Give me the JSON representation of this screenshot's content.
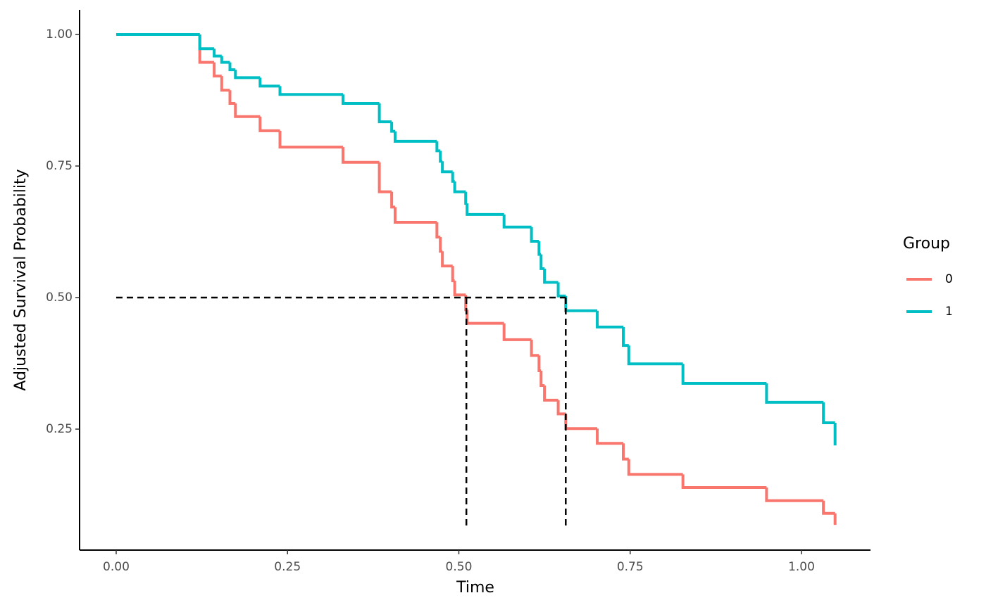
{
  "chart_data": {
    "type": "step",
    "x_label": "Time",
    "y_label": "Adjusted Survival Probability",
    "legend_title": "Group",
    "legend": "right",
    "xlim": [
      -0.0534,
      1.1007
    ],
    "ylim": [
      0.0201,
      1.0468
    ],
    "xticks": [
      {
        "value": 0,
        "label": "0.00"
      },
      {
        "value": 0.25,
        "label": "0.25"
      },
      {
        "value": 0.5,
        "label": "0.50"
      },
      {
        "value": 0.75,
        "label": "0.75"
      },
      {
        "value": 1,
        "label": "1.00"
      }
    ],
    "yticks": [
      {
        "value": 0.25,
        "label": "0.25"
      },
      {
        "value": 0.5,
        "label": "0.50"
      },
      {
        "value": 0.75,
        "label": "0.75"
      },
      {
        "value": 1,
        "label": "1.00"
      }
    ],
    "series": [
      {
        "name": "0",
        "color": "#F8766D",
        "x": [
          0,
          0.122,
          0.143,
          0.154,
          0.166,
          0.174,
          0.21,
          0.239,
          0.331,
          0.384,
          0.402,
          0.407,
          0.468,
          0.473,
          0.476,
          0.491,
          0.494,
          0.51,
          0.512,
          0.566,
          0.606,
          0.617,
          0.62,
          0.625,
          0.645,
          0.656,
          0.702,
          0.74,
          0.748,
          0.827,
          0.949,
          1.032,
          1.049
        ],
        "values": [
          1,
          0.947,
          0.921,
          0.894,
          0.869,
          0.844,
          0.817,
          0.786,
          0.757,
          0.701,
          0.672,
          0.643,
          0.615,
          0.588,
          0.56,
          0.532,
          0.505,
          0.477,
          0.451,
          0.42,
          0.39,
          0.361,
          0.333,
          0.305,
          0.279,
          0.251,
          0.223,
          0.193,
          0.164,
          0.139,
          0.114,
          0.09,
          0.068
        ]
      },
      {
        "name": "1",
        "color": "#00BFC4",
        "x": [
          0,
          0.122,
          0.143,
          0.154,
          0.166,
          0.174,
          0.21,
          0.239,
          0.331,
          0.384,
          0.402,
          0.407,
          0.468,
          0.473,
          0.476,
          0.491,
          0.494,
          0.51,
          0.512,
          0.566,
          0.606,
          0.617,
          0.62,
          0.625,
          0.645,
          0.656,
          0.702,
          0.74,
          0.748,
          0.827,
          0.949,
          1.032,
          1.049
        ],
        "values": [
          1,
          0.973,
          0.959,
          0.947,
          0.933,
          0.918,
          0.902,
          0.886,
          0.869,
          0.834,
          0.816,
          0.797,
          0.779,
          0.759,
          0.739,
          0.721,
          0.701,
          0.679,
          0.658,
          0.634,
          0.607,
          0.582,
          0.555,
          0.529,
          0.503,
          0.475,
          0.444,
          0.409,
          0.374,
          0.337,
          0.301,
          0.262,
          0.219
        ]
      }
    ],
    "median_lines": {
      "y": 0.5,
      "x": [
        0.511,
        0.656
      ],
      "y_end": 0.066,
      "color": "#000000"
    }
  }
}
